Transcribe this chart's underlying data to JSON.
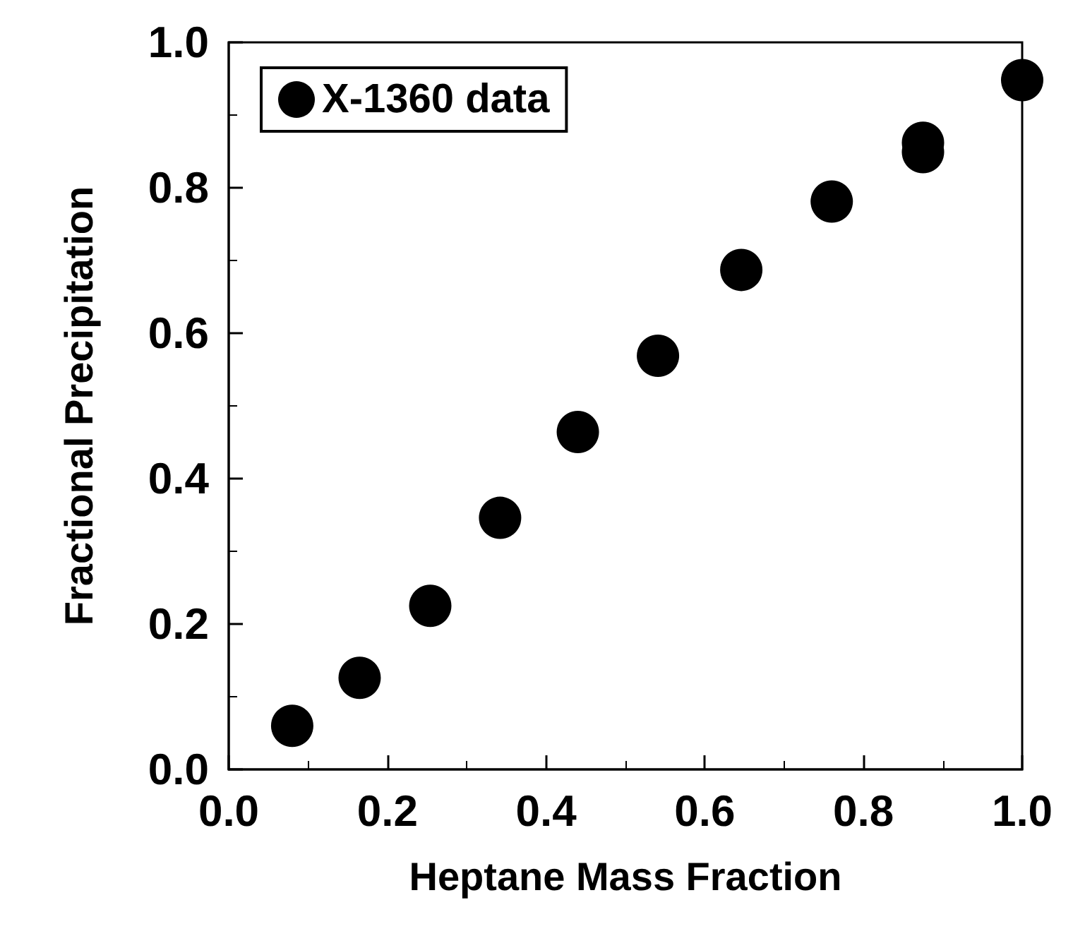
{
  "chart_data": {
    "type": "scatter",
    "xlabel": "Heptane Mass Fraction",
    "ylabel": "Fractional Precipitation",
    "series": [
      {
        "name": "X-1360 data",
        "color": "#000000",
        "x": [
          0.08,
          0.165,
          0.254,
          0.342,
          0.44,
          0.541,
          0.646,
          0.76,
          0.875,
          0.875,
          1.0
        ],
        "values": [
          0.06,
          0.126,
          0.225,
          0.346,
          0.464,
          0.569,
          0.687,
          0.781,
          0.862,
          0.849,
          0.948
        ]
      }
    ],
    "xlim": [
      0,
      1
    ],
    "ylim": [
      0,
      1
    ],
    "xticks": [
      {
        "value": 0,
        "label": "0.0"
      },
      {
        "value": 0.2,
        "label": "0.2"
      },
      {
        "value": 0.4,
        "label": "0.4"
      },
      {
        "value": 0.6,
        "label": "0.6"
      },
      {
        "value": 0.8,
        "label": "0.8"
      },
      {
        "value": 1,
        "label": "1.0"
      }
    ],
    "yticks": [
      {
        "value": 0,
        "label": "0.0"
      },
      {
        "value": 0.2,
        "label": "0.2"
      },
      {
        "value": 0.4,
        "label": "0.4"
      },
      {
        "value": 0.6,
        "label": "0.6"
      },
      {
        "value": 0.8,
        "label": "0.8"
      },
      {
        "value": 1,
        "label": "1.0"
      }
    ],
    "grid": false,
    "legend": "top left",
    "marker": "circle"
  }
}
